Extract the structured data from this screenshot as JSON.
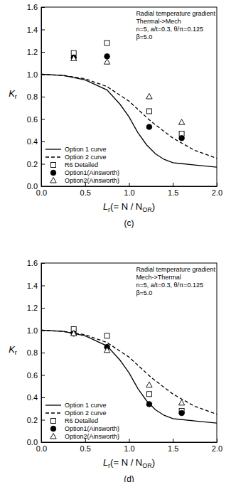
{
  "chart_data": [
    {
      "type": "line",
      "title": "(c)",
      "annotations": [
        "Radial temperature gradient",
        "Thermal->Mech",
        "n=5, a/t=0.3, θ/π=0.125",
        "β=5.0"
      ],
      "x_label": [
        "L",
        "r",
        "(= N / N",
        "OR",
        ")"
      ],
      "y_label": [
        "K",
        "r"
      ],
      "xlim": [
        0,
        2.0
      ],
      "xticks": [
        {
          "value": 0,
          "label": "0.0"
        },
        0.5,
        {
          "value": 1,
          "label": "1.0"
        },
        1.5,
        {
          "value": 2,
          "label": "2.0"
        }
      ],
      "ylim": [
        0,
        1.6
      ],
      "yticks": [
        {
          "value": 0,
          "label": "0.0"
        },
        0.2,
        0.4,
        0.6,
        0.8,
        {
          "value": 1,
          "label": "1.0"
        },
        1.2,
        1.4,
        1.6
      ],
      "legend": "lower left",
      "series": [
        {
          "name": "Option 1 curve",
          "type": "line",
          "line_style": "solid",
          "color": "#000000",
          "x": [
            0,
            0.25,
            0.5,
            0.75,
            0.9,
            1.0,
            1.1,
            1.2,
            1.3,
            1.4,
            1.5,
            1.75,
            2.0
          ],
          "values": [
            1.0,
            0.99,
            0.95,
            0.86,
            0.73,
            0.62,
            0.48,
            0.37,
            0.29,
            0.24,
            0.21,
            0.19,
            0.17
          ]
        },
        {
          "name": "Option 2 curve",
          "type": "line",
          "line_style": "dashed",
          "color": "#000000",
          "x": [
            0,
            0.25,
            0.5,
            0.75,
            1.0,
            1.25,
            1.5,
            1.75,
            2.0
          ],
          "values": [
            1.0,
            0.99,
            0.96,
            0.89,
            0.76,
            0.58,
            0.43,
            0.32,
            0.25
          ]
        },
        {
          "name": "R6 Detailed",
          "type": "scatter",
          "marker": "square-open",
          "color": "#000000",
          "x": [
            0.37,
            0.75,
            1.23,
            1.6
          ],
          "values": [
            1.19,
            1.28,
            0.67,
            0.47
          ]
        },
        {
          "name": "Option1(Ainsworth)",
          "type": "scatter",
          "marker": "circle",
          "color": "#000000",
          "x": [
            0.37,
            0.75,
            1.23,
            1.6
          ],
          "values": [
            1.15,
            1.16,
            0.53,
            0.43
          ]
        },
        {
          "name": "Option2(Ainsworth)",
          "type": "scatter",
          "marker": "triangle-open",
          "color": "#000000",
          "x": [
            0.37,
            0.75,
            1.23,
            1.6
          ],
          "values": [
            1.14,
            1.11,
            0.8,
            0.57
          ]
        }
      ]
    },
    {
      "type": "line",
      "title": "(d)",
      "annotations": [
        "Radial temperature gradient",
        "Mech->Thermal",
        "n=5, a/t=0.3, θ/π=0.125",
        "β=5.0"
      ],
      "x_label": [
        "L",
        "r",
        "(= N / N",
        "OR",
        ")"
      ],
      "y_label": [
        "K",
        "r"
      ],
      "xlim": [
        0,
        2.0
      ],
      "xticks": [
        {
          "value": 0,
          "label": "0.0"
        },
        0.5,
        {
          "value": 1,
          "label": "1.0"
        },
        1.5,
        {
          "value": 2,
          "label": "2.0"
        }
      ],
      "ylim": [
        0,
        1.6
      ],
      "yticks": [
        {
          "value": 0,
          "label": "0.0"
        },
        0.2,
        0.4,
        0.6,
        0.8,
        {
          "value": 1,
          "label": "1.0"
        },
        1.2,
        1.4,
        1.6
      ],
      "legend": "lower left",
      "series": [
        {
          "name": "Option 1 curve",
          "type": "line",
          "line_style": "solid",
          "color": "#000000",
          "x": [
            0,
            0.25,
            0.5,
            0.75,
            0.9,
            1.0,
            1.1,
            1.2,
            1.3,
            1.4,
            1.5,
            1.75,
            2.0
          ],
          "values": [
            1.0,
            0.99,
            0.95,
            0.86,
            0.73,
            0.62,
            0.48,
            0.37,
            0.29,
            0.24,
            0.21,
            0.19,
            0.17
          ]
        },
        {
          "name": "Option 2 curve",
          "type": "line",
          "line_style": "dashed",
          "color": "#000000",
          "x": [
            0,
            0.25,
            0.5,
            0.75,
            1.0,
            1.25,
            1.5,
            1.75,
            2.0
          ],
          "values": [
            1.0,
            0.99,
            0.96,
            0.89,
            0.76,
            0.58,
            0.43,
            0.32,
            0.25
          ]
        },
        {
          "name": "R6 Detailed",
          "type": "scatter",
          "marker": "square-open",
          "color": "#000000",
          "x": [
            0.37,
            0.75,
            1.23,
            1.6
          ],
          "values": [
            1.01,
            0.95,
            0.43,
            0.28
          ]
        },
        {
          "name": "Option1(Ainsworth)",
          "type": "scatter",
          "marker": "circle",
          "color": "#000000",
          "x": [
            0.37,
            0.75,
            1.23,
            1.6
          ],
          "values": [
            0.97,
            0.85,
            0.34,
            0.26
          ]
        },
        {
          "name": "Option2(Ainsworth)",
          "type": "scatter",
          "marker": "triangle-open",
          "color": "#000000",
          "x": [
            0.37,
            0.75,
            1.23,
            1.6
          ],
          "values": [
            0.97,
            0.82,
            0.51,
            0.35
          ]
        }
      ]
    }
  ]
}
